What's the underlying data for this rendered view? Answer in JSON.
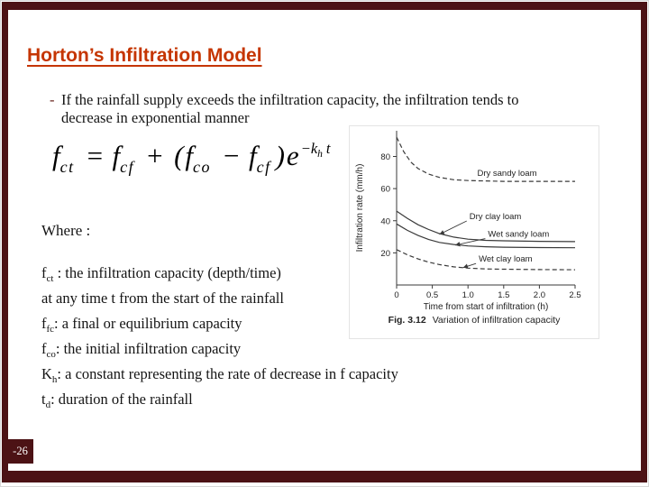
{
  "colors": {
    "frame": "#4C1215",
    "titlecolor": "#C53500",
    "textcolor": "#141414"
  },
  "slide": {
    "title": "Horton’s Infiltration Model",
    "page_number": "-26"
  },
  "bullet": {
    "marker": "-",
    "text": "If the rainfall supply exceeds the infiltration capacity, the infiltration tends to decrease in exponential manner"
  },
  "formula": {
    "v1": "f",
    "s1": "ct",
    "eq": "=",
    "v2": "f",
    "s2": "cf",
    "plus": "+",
    "lp": "(",
    "v3": "f",
    "s3": "co",
    "minus": "−",
    "v4": "f",
    "s4": "cf",
    "rp": ")",
    "v5": "e",
    "e1": "−k",
    "e2": "h",
    "e3": "t"
  },
  "where_label": "Where :",
  "definitions": [
    {
      "base": "f",
      "sub": "ct",
      "rest": " : the infiltration capacity (depth/time)"
    },
    {
      "base": "",
      "sub": "",
      "rest": "at any time t from the start of the rainfall"
    },
    {
      "base": "f",
      "sub": "fc",
      "rest": ": a final or equilibrium capacity"
    },
    {
      "base": "f",
      "sub": "co",
      "rest": ": the initial infiltration capacity"
    },
    {
      "base": "K",
      "sub": "h",
      "rest": ": a constant representing the rate of decrease in f capacity"
    },
    {
      "base": "t",
      "sub": "d",
      "rest": ": duration of the rainfall"
    }
  ],
  "chart_data": {
    "type": "line",
    "title": "",
    "xlabel": "Time from start of infiltration (h)",
    "ylabel": "Infiltration rate (mm/h)",
    "xlim": [
      0,
      2.5
    ],
    "ylim": [
      0,
      96
    ],
    "x_ticks": [
      0,
      0.5,
      1.0,
      1.5,
      2.0,
      2.5
    ],
    "x_tick_labels": [
      "0",
      "0.5",
      "1.0",
      "1.5",
      "2.0",
      "2.5"
    ],
    "y_ticks": [
      20,
      40,
      60,
      80
    ],
    "y_tick_labels": [
      "20",
      "40",
      "60",
      "80"
    ],
    "grid": false,
    "legend": "inline-labels",
    "line_color": "#3a3a3a",
    "caption_bold": "Fig. 3.12",
    "caption": "Variation of infiltration capacity",
    "series": [
      {
        "name": "Dry sandy loam",
        "style": "dashed",
        "x": [
          0,
          0.1,
          0.2,
          0.3,
          0.45,
          0.6,
          0.8,
          1.0,
          1.5,
          2.0,
          2.5
        ],
        "y": [
          92,
          83,
          76.5,
          72.5,
          69,
          67,
          65.5,
          65,
          64.5,
          64.5,
          64.5
        ]
      },
      {
        "name": "Dry clay loam",
        "style": "solid",
        "x": [
          0,
          0.15,
          0.3,
          0.45,
          0.6,
          0.8,
          1.0,
          1.25,
          1.5,
          2.0,
          2.5
        ],
        "y": [
          46,
          41.5,
          37.5,
          34.5,
          32,
          29.8,
          28.5,
          27.8,
          27.5,
          27.2,
          27
        ]
      },
      {
        "name": "Wet sandy loam",
        "style": "solid",
        "x": [
          0,
          0.15,
          0.3,
          0.45,
          0.6,
          0.8,
          1.0,
          1.25,
          1.5,
          2.0,
          2.5
        ],
        "y": [
          38,
          34,
          30.8,
          28.3,
          26.5,
          25.2,
          24.3,
          23.8,
          23.5,
          23.3,
          23.2
        ]
      },
      {
        "name": "Wet clay loam",
        "style": "dashed",
        "x": [
          0,
          0.15,
          0.3,
          0.45,
          0.6,
          0.8,
          1.0,
          1.25,
          1.5,
          2.0,
          2.5
        ],
        "y": [
          22,
          18.8,
          16.2,
          14.2,
          12.7,
          11.3,
          10.5,
          10,
          9.8,
          9.6,
          9.5
        ]
      }
    ],
    "annotations": [
      {
        "text": "Dry sandy loam",
        "x": 1.13,
        "y": 68,
        "arrow": null
      },
      {
        "text": "Dry clay loam",
        "x": 1.02,
        "y": 41,
        "arrow": {
          "x": 0.6,
          "y": 31.5
        }
      },
      {
        "text": "Wet sandy loam",
        "x": 1.28,
        "y": 30,
        "arrow": {
          "x": 0.82,
          "y": 24.8
        }
      },
      {
        "text": "Wet clay loam",
        "x": 1.15,
        "y": 14.5,
        "arrow": {
          "x": 0.93,
          "y": 10.8
        }
      }
    ]
  }
}
